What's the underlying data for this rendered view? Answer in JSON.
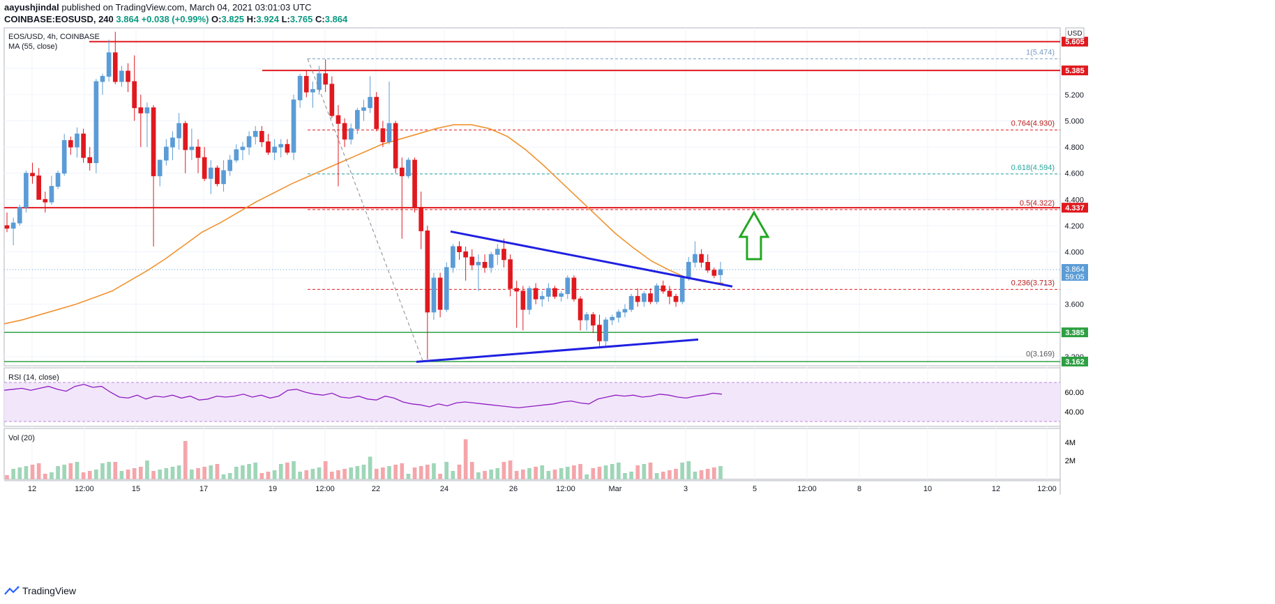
{
  "header": {
    "publisher": "aayushjindal",
    "publisher_rest": " published on TradingView.com, March 04, 2021 03:01:03 UTC",
    "symbol_line": "COINBASE:EOSUSD, 240",
    "last": "3.864",
    "change": "+0.038 (+0.99%)",
    "o_label": "O:",
    "o": "3.825",
    "h_label": "H:",
    "h": "3.924",
    "l_label": "L:",
    "l": "3.765",
    "c_label": "C:",
    "c": "3.864"
  },
  "pane_labels": {
    "symbol": "EOS/USD, 4h, COINBASE",
    "ma": "MA (55, close)",
    "rsi": "RSI (14, close)",
    "vol": "Vol (20)",
    "currency": "USD"
  },
  "brand": "TradingView",
  "colors": {
    "up": "#5b9cd6",
    "down": "#e0191f",
    "ma": "#f0922f",
    "trend": "#1f20e0",
    "resistance": "#e0191f",
    "support": "#2ea043",
    "rsi_line": "#8e1cbf",
    "rsi_band": "#f2e6fb",
    "arrow": "#22a722"
  },
  "chart_data": {
    "type": "candlestick",
    "title": "EOS/USD, 4h, COINBASE",
    "price_axis": {
      "ticks": [
        3.2,
        3.4,
        3.6,
        3.8,
        4.0,
        4.2,
        4.4,
        4.6,
        4.8,
        5.0,
        5.2,
        5.4
      ],
      "tick_labels": [
        "3.200",
        "3.400",
        "3.600",
        "3.800",
        "4.000",
        "4.200",
        "4.400",
        "4.600",
        "4.800",
        "5.000",
        "5.200",
        "5.400"
      ],
      "range": [
        3.13,
        5.71
      ]
    },
    "time_axis": {
      "tick_labels": [
        "12",
        "12:00",
        "15",
        "17",
        "19",
        "12:00",
        "22",
        "24",
        "26",
        "12:00",
        "Mar",
        "3",
        "5",
        "12:00",
        "8",
        "10",
        "12",
        "12:00"
      ]
    },
    "candles": [
      [
        4.2,
        4.3,
        4.15,
        4.18
      ],
      [
        4.18,
        4.26,
        4.05,
        4.22
      ],
      [
        4.22,
        4.36,
        4.2,
        4.34
      ],
      [
        4.34,
        4.62,
        4.3,
        4.6
      ],
      [
        4.6,
        4.68,
        4.52,
        4.58
      ],
      [
        4.58,
        4.64,
        4.4,
        4.4
      ],
      [
        4.4,
        4.46,
        4.3,
        4.38
      ],
      [
        4.38,
        4.58,
        4.36,
        4.5
      ],
      [
        4.5,
        4.62,
        4.48,
        4.6
      ],
      [
        4.6,
        4.9,
        4.58,
        4.85
      ],
      [
        4.85,
        4.88,
        4.74,
        4.8
      ],
      [
        4.8,
        4.95,
        4.72,
        4.9
      ],
      [
        4.9,
        4.94,
        4.68,
        4.72
      ],
      [
        4.72,
        4.8,
        4.62,
        4.68
      ],
      [
        4.68,
        5.32,
        4.6,
        5.3
      ],
      [
        5.3,
        5.36,
        5.2,
        5.34
      ],
      [
        5.34,
        5.62,
        5.3,
        5.52
      ],
      [
        5.52,
        5.68,
        5.28,
        5.3
      ],
      [
        5.3,
        5.42,
        5.26,
        5.38
      ],
      [
        5.38,
        5.44,
        5.22,
        5.3
      ],
      [
        5.3,
        5.5,
        5.0,
        5.1
      ],
      [
        5.1,
        5.2,
        4.8,
        5.06
      ],
      [
        5.06,
        5.14,
        4.8,
        5.1
      ],
      [
        5.1,
        5.12,
        4.04,
        4.58
      ],
      [
        4.58,
        4.7,
        4.5,
        4.7
      ],
      [
        4.7,
        4.86,
        4.66,
        4.8
      ],
      [
        4.8,
        4.92,
        4.7,
        4.87
      ],
      [
        4.87,
        5.06,
        4.78,
        4.98
      ],
      [
        4.98,
        5.0,
        4.6,
        4.78
      ],
      [
        4.78,
        4.94,
        4.7,
        4.8
      ],
      [
        4.8,
        4.86,
        4.6,
        4.72
      ],
      [
        4.72,
        4.8,
        4.54,
        4.56
      ],
      [
        4.56,
        4.7,
        4.44,
        4.64
      ],
      [
        4.64,
        4.66,
        4.5,
        4.52
      ],
      [
        4.52,
        4.7,
        4.46,
        4.62
      ],
      [
        4.62,
        4.74,
        4.58,
        4.7
      ],
      [
        4.7,
        4.82,
        4.68,
        4.78
      ],
      [
        4.78,
        4.84,
        4.7,
        4.8
      ],
      [
        4.8,
        4.92,
        4.74,
        4.88
      ],
      [
        4.88,
        4.96,
        4.82,
        4.92
      ],
      [
        4.92,
        4.96,
        4.8,
        4.84
      ],
      [
        4.84,
        4.9,
        4.74,
        4.76
      ],
      [
        4.76,
        4.86,
        4.7,
        4.8
      ],
      [
        4.8,
        4.86,
        4.72,
        4.82
      ],
      [
        4.82,
        4.86,
        4.74,
        4.76
      ],
      [
        4.76,
        5.2,
        4.7,
        5.16
      ],
      [
        5.16,
        5.36,
        5.1,
        5.34
      ],
      [
        5.34,
        5.38,
        5.18,
        5.22
      ],
      [
        5.22,
        5.3,
        5.1,
        5.24
      ],
      [
        5.24,
        5.42,
        5.2,
        5.36
      ],
      [
        5.36,
        5.47,
        5.22,
        5.28
      ],
      [
        5.28,
        5.34,
        5.02,
        5.04
      ],
      [
        5.04,
        5.12,
        4.5,
        4.98
      ],
      [
        4.98,
        5.02,
        4.8,
        4.86
      ],
      [
        4.86,
        4.98,
        4.82,
        4.94
      ],
      [
        4.94,
        5.1,
        4.9,
        5.08
      ],
      [
        5.08,
        5.16,
        5.0,
        5.1
      ],
      [
        5.1,
        5.34,
        5.06,
        5.18
      ],
      [
        5.18,
        5.22,
        4.92,
        4.94
      ],
      [
        4.94,
        5.0,
        4.8,
        4.84
      ],
      [
        4.84,
        5.3,
        4.82,
        4.98
      ],
      [
        4.98,
        5.0,
        4.6,
        4.64
      ],
      [
        4.64,
        4.72,
        4.1,
        4.58
      ],
      [
        4.58,
        4.72,
        4.56,
        4.7
      ],
      [
        4.7,
        4.72,
        4.3,
        4.34
      ],
      [
        4.34,
        4.46,
        4.02,
        4.16
      ],
      [
        4.16,
        4.2,
        3.18,
        3.54
      ],
      [
        3.54,
        3.84,
        3.48,
        3.8
      ],
      [
        3.8,
        3.84,
        3.5,
        3.56
      ],
      [
        3.56,
        3.92,
        3.54,
        3.88
      ],
      [
        3.88,
        4.06,
        3.84,
        4.04
      ],
      [
        4.04,
        4.08,
        3.94,
        4.0
      ],
      [
        4.0,
        4.04,
        3.78,
        3.96
      ],
      [
        3.96,
        4.02,
        3.86,
        3.9
      ],
      [
        3.9,
        3.98,
        3.7,
        3.92
      ],
      [
        3.92,
        3.98,
        3.84,
        3.88
      ],
      [
        3.88,
        4.0,
        3.84,
        3.98
      ],
      [
        3.98,
        4.06,
        3.9,
        4.02
      ],
      [
        4.02,
        4.1,
        3.88,
        3.94
      ],
      [
        3.94,
        3.98,
        3.66,
        3.72
      ],
      [
        3.72,
        3.78,
        3.42,
        3.7
      ],
      [
        3.7,
        3.74,
        3.4,
        3.56
      ],
      [
        3.56,
        3.74,
        3.52,
        3.72
      ],
      [
        3.72,
        3.76,
        3.6,
        3.64
      ],
      [
        3.64,
        3.7,
        3.58,
        3.66
      ],
      [
        3.66,
        3.76,
        3.62,
        3.72
      ],
      [
        3.72,
        3.74,
        3.64,
        3.66
      ],
      [
        3.66,
        3.7,
        3.62,
        3.68
      ],
      [
        3.68,
        3.82,
        3.64,
        3.8
      ],
      [
        3.8,
        3.82,
        3.62,
        3.64
      ],
      [
        3.64,
        3.66,
        3.4,
        3.48
      ],
      [
        3.48,
        3.54,
        3.4,
        3.52
      ],
      [
        3.52,
        3.54,
        3.38,
        3.44
      ],
      [
        3.44,
        3.52,
        3.28,
        3.32
      ],
      [
        3.32,
        3.5,
        3.28,
        3.48
      ],
      [
        3.48,
        3.52,
        3.44,
        3.5
      ],
      [
        3.5,
        3.56,
        3.46,
        3.54
      ],
      [
        3.54,
        3.6,
        3.5,
        3.56
      ],
      [
        3.56,
        3.68,
        3.54,
        3.66
      ],
      [
        3.66,
        3.72,
        3.58,
        3.62
      ],
      [
        3.62,
        3.7,
        3.58,
        3.68
      ],
      [
        3.68,
        3.72,
        3.6,
        3.62
      ],
      [
        3.62,
        3.76,
        3.6,
        3.74
      ],
      [
        3.74,
        3.78,
        3.68,
        3.7
      ],
      [
        3.7,
        3.74,
        3.6,
        3.66
      ],
      [
        3.66,
        3.68,
        3.58,
        3.62
      ],
      [
        3.62,
        3.82,
        3.6,
        3.8
      ],
      [
        3.8,
        3.96,
        3.78,
        3.92
      ],
      [
        3.92,
        4.08,
        3.88,
        3.98
      ],
      [
        3.98,
        4.02,
        3.88,
        3.92
      ],
      [
        3.92,
        3.98,
        3.84,
        3.86
      ],
      [
        3.86,
        3.88,
        3.8,
        3.82
      ],
      [
        3.825,
        3.924,
        3.765,
        3.864
      ]
    ],
    "ma_55": [
      3.45,
      3.48,
      3.52,
      3.56,
      3.6,
      3.65,
      3.7,
      3.78,
      3.86,
      3.95,
      4.05,
      4.15,
      4.22,
      4.3,
      4.38,
      4.45,
      4.52,
      4.58,
      4.64,
      4.7,
      4.76,
      4.82,
      4.86,
      4.9,
      4.94,
      4.97,
      4.97,
      4.94,
      4.88,
      4.78,
      4.66,
      4.53,
      4.4,
      4.27,
      4.14,
      4.03,
      3.93,
      3.86,
      3.8,
      3.77,
      3.76
    ],
    "price_lines": [
      {
        "label": "5.605",
        "value": 5.605,
        "kind": "resistance"
      },
      {
        "label": "5.385",
        "value": 5.385,
        "kind": "resistance"
      },
      {
        "label": "4.337",
        "value": 4.337,
        "kind": "resistance"
      },
      {
        "label": "3.385",
        "value": 3.385,
        "kind": "support"
      },
      {
        "label": "3.162",
        "value": 3.162,
        "kind": "support"
      }
    ],
    "last_price_tag": {
      "label": "3.864",
      "countdown": "59:05",
      "value": 3.864
    },
    "fibonacci": [
      {
        "label": "1(5.474)",
        "value": 5.474,
        "kind": "start"
      },
      {
        "label": "0.764(4.930)",
        "value": 4.93,
        "kind": "red"
      },
      {
        "label": "0.618(4.594)",
        "value": 4.594,
        "kind": "green"
      },
      {
        "label": "0.5(4.322)",
        "value": 4.322,
        "kind": "red"
      },
      {
        "label": "0.236(3.713)",
        "value": 3.713,
        "kind": "red"
      },
      {
        "label": "0(3.169)",
        "value": 3.169,
        "kind": "end"
      }
    ],
    "rsi": {
      "label": "RSI (14, close)",
      "ticks": [
        "60.00",
        "40.00"
      ],
      "values": [
        62,
        63,
        64,
        62,
        64,
        66,
        63,
        61,
        66,
        68,
        65,
        66,
        60,
        55,
        54,
        57,
        53,
        56,
        55,
        57,
        54,
        56,
        52,
        53,
        56,
        55,
        56,
        58,
        55,
        57,
        54,
        56,
        62,
        63,
        60,
        58,
        57,
        59,
        55,
        54,
        56,
        53,
        52,
        56,
        54,
        50,
        48,
        47,
        45,
        48,
        46,
        49,
        50,
        49,
        48,
        47,
        46,
        45,
        44,
        45,
        46,
        47,
        48,
        50,
        51,
        49,
        48,
        53,
        55,
        57,
        56,
        57,
        55,
        56,
        58,
        57,
        55,
        54,
        56,
        57,
        59,
        58
      ]
    },
    "volume": {
      "label": "Vol (20)",
      "ticks": [
        "4M",
        "2M"
      ]
    }
  }
}
